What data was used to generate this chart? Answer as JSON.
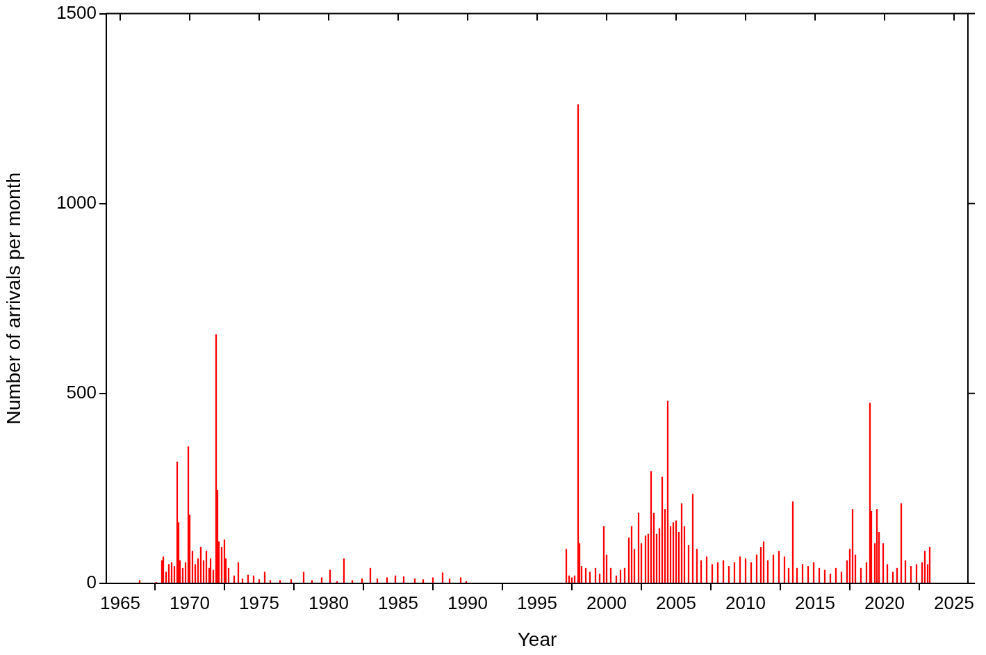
{
  "chart_data": {
    "type": "bar",
    "xlabel": "Year",
    "ylabel": "Number of arrivals per month",
    "x": [
      1966.4,
      1967.6,
      1968.0,
      1968.1,
      1968.3,
      1968.5,
      1968.7,
      1968.9,
      1969.1,
      1969.2,
      1969.3,
      1969.5,
      1969.7,
      1969.9,
      1970.0,
      1970.2,
      1970.4,
      1970.6,
      1970.8,
      1971.0,
      1971.2,
      1971.4,
      1971.5,
      1971.7,
      1971.9,
      1972.0,
      1972.1,
      1972.3,
      1972.5,
      1972.6,
      1972.8,
      1973.2,
      1973.5,
      1973.8,
      1974.2,
      1974.6,
      1975.0,
      1975.4,
      1975.8,
      1976.5,
      1977.3,
      1978.2,
      1978.8,
      1979.5,
      1980.1,
      1980.6,
      1981.1,
      1981.7,
      1982.4,
      1983.0,
      1983.5,
      1984.2,
      1984.8,
      1985.4,
      1986.2,
      1986.8,
      1987.5,
      1988.2,
      1988.7,
      1989.5,
      1989.9,
      1997.1,
      1997.3,
      1997.5,
      1997.7,
      1997.95,
      1998.05,
      1998.2,
      1998.5,
      1998.8,
      1999.2,
      1999.5,
      1999.8,
      2000.0,
      2000.3,
      2000.7,
      2001.0,
      2001.3,
      2001.6,
      2001.8,
      2002.0,
      2002.3,
      2002.5,
      2002.8,
      2003.0,
      2003.2,
      2003.4,
      2003.6,
      2003.8,
      2004.0,
      2004.2,
      2004.4,
      2004.6,
      2004.8,
      2005.0,
      2005.2,
      2005.4,
      2005.6,
      2005.9,
      2006.2,
      2006.5,
      2006.8,
      2007.2,
      2007.6,
      2008.0,
      2008.4,
      2008.8,
      2009.2,
      2009.6,
      2010.0,
      2010.4,
      2010.8,
      2011.1,
      2011.3,
      2011.6,
      2012.0,
      2012.4,
      2012.8,
      2013.1,
      2013.4,
      2013.7,
      2014.1,
      2014.5,
      2014.9,
      2015.3,
      2015.7,
      2016.1,
      2016.5,
      2016.9,
      2017.3,
      2017.5,
      2017.7,
      2017.9,
      2018.3,
      2018.7,
      2018.95,
      2019.05,
      2019.3,
      2019.45,
      2019.6,
      2019.9,
      2020.2,
      2020.6,
      2020.9,
      2021.2,
      2021.5,
      2021.9,
      2022.3,
      2022.7,
      2022.9,
      2023.1,
      2023.25
    ],
    "values": [
      8,
      3,
      60,
      70,
      30,
      50,
      55,
      45,
      320,
      160,
      60,
      40,
      55,
      360,
      180,
      85,
      50,
      65,
      95,
      60,
      85,
      40,
      65,
      35,
      655,
      245,
      110,
      95,
      115,
      65,
      40,
      20,
      55,
      12,
      22,
      20,
      10,
      30,
      8,
      8,
      10,
      30,
      8,
      15,
      35,
      5,
      65,
      8,
      12,
      40,
      12,
      15,
      20,
      18,
      12,
      10,
      15,
      28,
      12,
      15,
      5,
      90,
      20,
      15,
      20,
      1260,
      105,
      45,
      40,
      30,
      40,
      25,
      150,
      75,
      40,
      20,
      35,
      40,
      120,
      150,
      90,
      185,
      105,
      125,
      130,
      295,
      185,
      130,
      145,
      280,
      195,
      480,
      150,
      160,
      165,
      135,
      210,
      150,
      100,
      235,
      90,
      60,
      70,
      50,
      55,
      60,
      45,
      55,
      70,
      65,
      55,
      75,
      95,
      110,
      60,
      75,
      85,
      70,
      40,
      215,
      40,
      50,
      45,
      55,
      40,
      35,
      25,
      40,
      30,
      60,
      90,
      195,
      75,
      40,
      55,
      475,
      190,
      105,
      195,
      135,
      105,
      50,
      30,
      40,
      210,
      60,
      45,
      50,
      55,
      85,
      50,
      95
    ],
    "color": "#ff0000",
    "xlim": [
      1964,
      2026
    ],
    "xticks": [
      1965,
      1970,
      1975,
      1980,
      1985,
      1990,
      1995,
      2000,
      2005,
      2010,
      2015,
      2020,
      2025
    ],
    "ylim": [
      0,
      1500
    ],
    "yticks": [
      0,
      500,
      1000,
      1500
    ],
    "grid": false,
    "legend": false
  }
}
